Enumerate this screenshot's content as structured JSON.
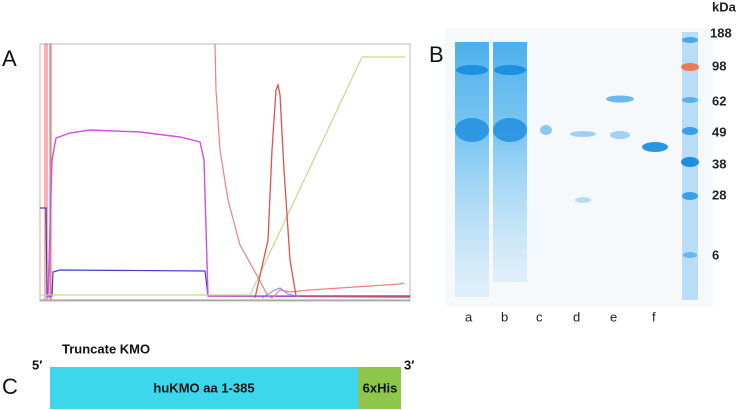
{
  "panels": {
    "a": "A",
    "b": "B",
    "c": "C"
  },
  "gel": {
    "unit": "kDa",
    "markers": [
      "188",
      "98",
      "62",
      "49",
      "38",
      "28",
      "6"
    ],
    "lanes": [
      "a",
      "b",
      "c",
      "d",
      "e",
      "f"
    ]
  },
  "construct": {
    "title": "Truncate KMO",
    "five_prime": "5′",
    "three_prime": "3′",
    "domains": [
      "huKMO aa 1-385",
      "6xHis"
    ]
  }
}
